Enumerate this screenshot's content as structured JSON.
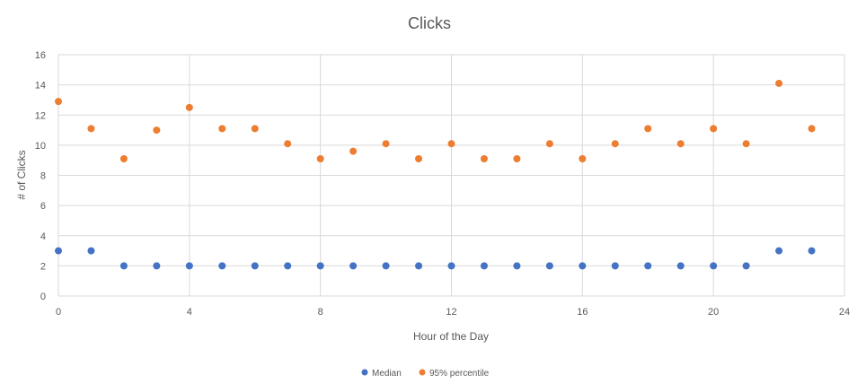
{
  "chart_data": {
    "type": "scatter",
    "title": "Clicks",
    "xlabel": "Hour of the Day",
    "ylabel": "# of Clicks",
    "xlim": [
      0,
      24
    ],
    "ylim": [
      0,
      16
    ],
    "x_ticks": [
      0,
      4,
      8,
      12,
      16,
      20,
      24
    ],
    "y_ticks": [
      0,
      2,
      4,
      6,
      8,
      10,
      12,
      14,
      16
    ],
    "grid": true,
    "legend_position": "bottom",
    "series": [
      {
        "name": "Median",
        "color": "#4472c4",
        "x": [
          0,
          1,
          2,
          3,
          4,
          5,
          6,
          7,
          8,
          9,
          10,
          11,
          12,
          13,
          14,
          15,
          16,
          17,
          18,
          19,
          20,
          21,
          22,
          23
        ],
        "y": [
          3,
          3,
          2,
          2,
          2,
          2,
          2,
          2,
          2,
          2,
          2,
          2,
          2,
          2,
          2,
          2,
          2,
          2,
          2,
          2,
          2,
          2,
          3,
          3
        ]
      },
      {
        "name": "95% percentile",
        "color": "#ed7d31",
        "x": [
          0,
          1,
          2,
          3,
          4,
          5,
          6,
          7,
          8,
          9,
          10,
          11,
          12,
          13,
          14,
          15,
          16,
          17,
          18,
          19,
          20,
          21,
          22,
          23
        ],
        "y": [
          12.9,
          11.1,
          9.1,
          11,
          12.5,
          11.1,
          11.1,
          10.1,
          9.1,
          9.6,
          10.1,
          9.1,
          10.1,
          9.1,
          9.1,
          10.1,
          9.1,
          10.1,
          11.1,
          10.1,
          11.1,
          10.1,
          14.1,
          11.1
        ]
      }
    ]
  }
}
